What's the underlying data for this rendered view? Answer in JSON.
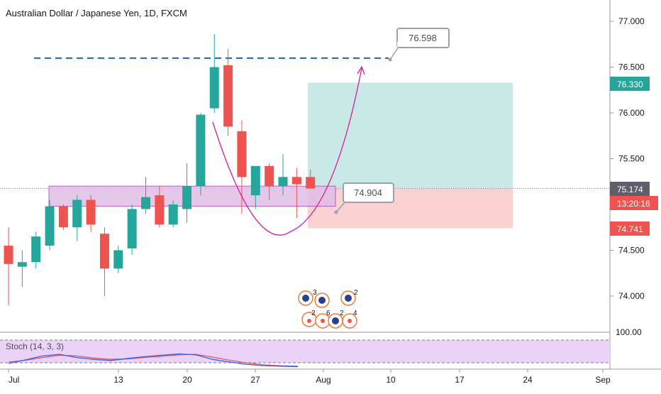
{
  "chart_title": "Australian Dollar / Japanese Yen, 1D, FXCM",
  "stoch_label": "Stoch (14, 3, 3)",
  "colors": {
    "up": "#26a69a",
    "down": "#ef5350",
    "target_zone": "#b2dfdb",
    "stop_zone": "#f8c7c5",
    "support_zone": "#e1bee7",
    "support_border": "#ab47bc",
    "curve": "#d81b9a",
    "dashed_level": "#1565c0",
    "stoch_band": "#ead3f7"
  },
  "price_labels": {
    "target": "76.330",
    "current": "75.174",
    "countdown": "13:20:16",
    "stop": "74.741"
  },
  "callouts": {
    "high": "76.598",
    "low": "74.904"
  },
  "stoch_axis_label": "100.00",
  "chart_data": {
    "type": "candlestick",
    "title": "Australian Dollar / Japanese Yen, 1D, FXCM",
    "y_ticks": [
      "77.000",
      "76.500",
      "76.000",
      "75.500",
      "75.174",
      "74.500",
      "74.000"
    ],
    "x_ticks": [
      "Jul",
      "13",
      "20",
      "27",
      "Aug",
      "10",
      "17",
      "24",
      "Sep"
    ],
    "ylim": [
      73.8,
      77.1
    ],
    "candles": [
      {
        "date": "Jul 1",
        "open": 74.55,
        "high": 74.75,
        "low": 73.9,
        "close": 74.35
      },
      {
        "date": "Jul 2",
        "open": 74.32,
        "high": 74.5,
        "low": 74.1,
        "close": 74.37
      },
      {
        "date": "Jul 3",
        "open": 74.37,
        "high": 74.7,
        "low": 74.3,
        "close": 74.65
      },
      {
        "date": "Jul 6",
        "open": 74.55,
        "high": 75.05,
        "low": 74.5,
        "close": 74.98
      },
      {
        "date": "Jul 7",
        "open": 74.98,
        "high": 75.0,
        "low": 74.72,
        "close": 74.75
      },
      {
        "date": "Jul 8",
        "open": 74.75,
        "high": 75.1,
        "low": 74.6,
        "close": 75.05
      },
      {
        "date": "Jul 9",
        "open": 75.05,
        "high": 75.1,
        "low": 74.7,
        "close": 74.78
      },
      {
        "date": "Jul 10",
        "open": 74.68,
        "high": 74.75,
        "low": 74.0,
        "close": 74.3
      },
      {
        "date": "Jul 13",
        "open": 74.3,
        "high": 74.55,
        "low": 74.25,
        "close": 74.5
      },
      {
        "date": "Jul 14",
        "open": 74.52,
        "high": 75.0,
        "low": 74.45,
        "close": 74.95
      },
      {
        "date": "Jul 15",
        "open": 74.95,
        "high": 75.3,
        "low": 74.9,
        "close": 75.08
      },
      {
        "date": "Jul 16",
        "open": 75.1,
        "high": 75.2,
        "low": 74.75,
        "close": 74.78
      },
      {
        "date": "Jul 17",
        "open": 74.78,
        "high": 75.05,
        "low": 74.75,
        "close": 75.0
      },
      {
        "date": "Jul 20",
        "open": 74.95,
        "high": 75.45,
        "low": 74.8,
        "close": 75.2
      },
      {
        "date": "Jul 21",
        "open": 75.2,
        "high": 76.0,
        "low": 75.1,
        "close": 75.98
      },
      {
        "date": "Jul 22",
        "open": 76.05,
        "high": 76.86,
        "low": 76.0,
        "close": 76.5
      },
      {
        "date": "Jul 23",
        "open": 76.52,
        "high": 76.7,
        "low": 75.75,
        "close": 75.85
      },
      {
        "date": "Jul 24",
        "open": 75.8,
        "high": 75.92,
        "low": 74.9,
        "close": 75.3
      },
      {
        "date": "Jul 27",
        "open": 75.1,
        "high": 75.4,
        "low": 74.95,
        "close": 75.42
      },
      {
        "date": "Jul 28",
        "open": 75.42,
        "high": 75.45,
        "low": 75.05,
        "close": 75.2
      },
      {
        "date": "Jul 29",
        "open": 75.2,
        "high": 75.55,
        "low": 75.1,
        "close": 75.3
      },
      {
        "date": "Jul 30",
        "open": 75.3,
        "high": 75.4,
        "low": 74.85,
        "close": 75.22
      },
      {
        "date": "Jul 31",
        "open": 75.3,
        "high": 75.38,
        "low": 75.18,
        "close": 75.174
      }
    ],
    "levels": {
      "resistance_dashed": 76.598,
      "support_zone": [
        74.98,
        75.2
      ],
      "target": 76.33,
      "entry": 75.174,
      "stop": 74.741
    },
    "stochastic": {
      "params": [
        14,
        3,
        3
      ],
      "k": [
        22,
        38,
        55,
        62,
        48,
        40,
        35,
        44,
        52,
        58,
        64,
        60,
        40,
        28,
        18,
        12,
        10,
        8
      ],
      "d": [
        28,
        36,
        48,
        58,
        55,
        46,
        40,
        42,
        48,
        54,
        60,
        62,
        50,
        36,
        24,
        16,
        12,
        10
      ]
    }
  }
}
